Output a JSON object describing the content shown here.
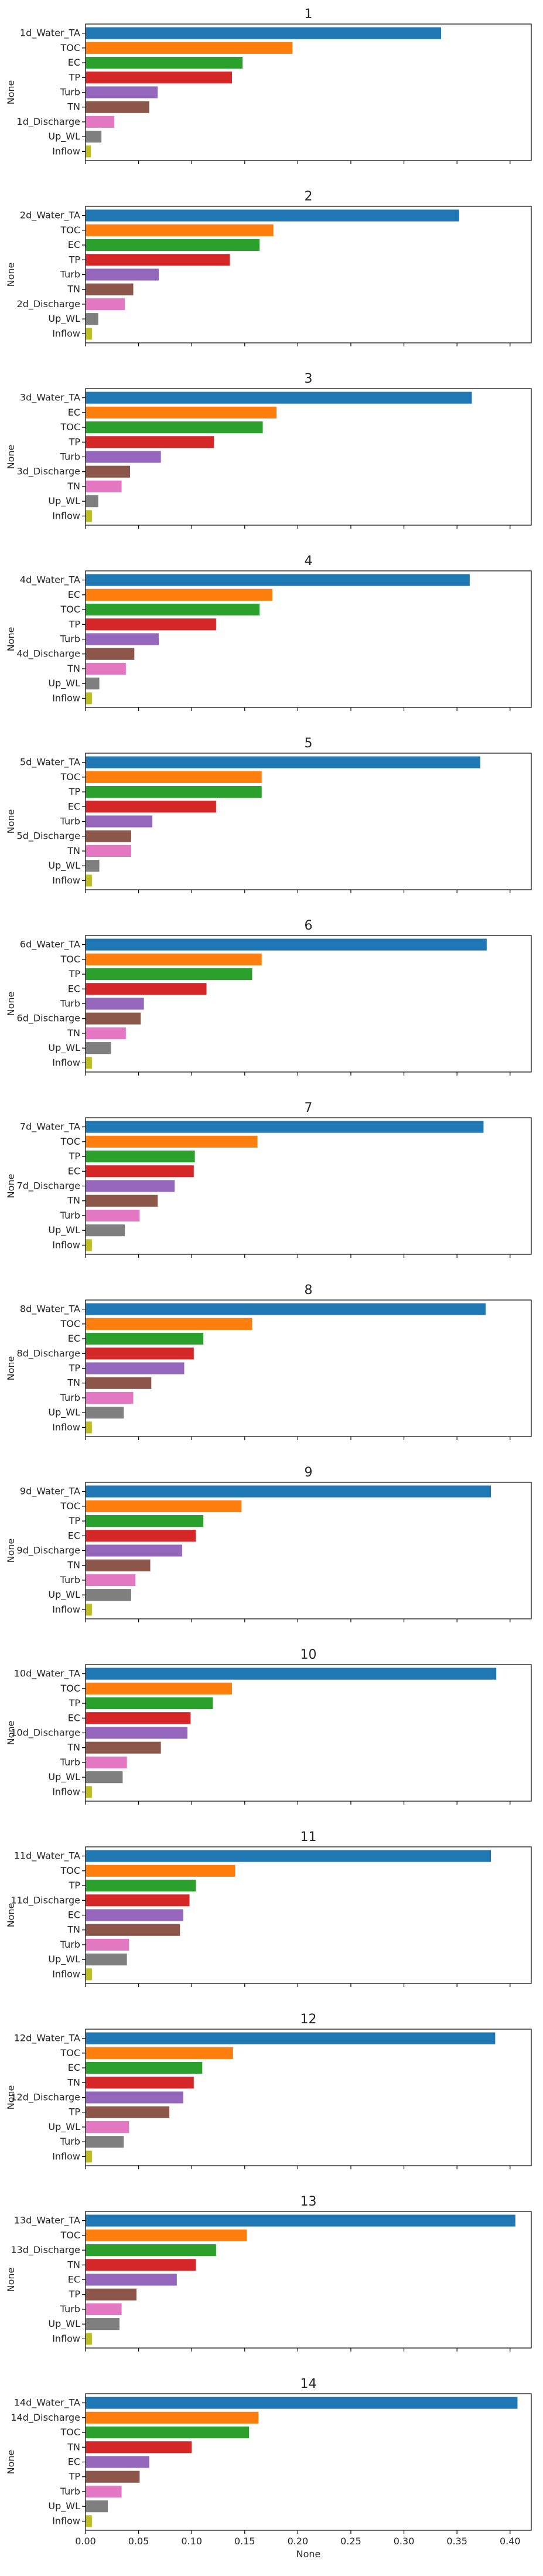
{
  "figure": {
    "background": "#ffffff",
    "colors": [
      "#1f77b4",
      "#ff7f0e",
      "#2ca02c",
      "#d62728",
      "#9467bd",
      "#8c564b",
      "#e377c2",
      "#7f7f7f",
      "#bcbd22"
    ]
  },
  "chart_data": [
    {
      "type": "bar",
      "orientation": "horizontal",
      "title": "1",
      "xlabel": "",
      "ylabel": "None",
      "xlim": [
        0,
        0.42
      ],
      "categories": [
        "1d_Water_TA",
        "TOC",
        "EC",
        "TP",
        "Turb",
        "TN",
        "1d_Discharge",
        "Up_WL",
        "Inflow"
      ],
      "values": [
        0.335,
        0.195,
        0.148,
        0.138,
        0.068,
        0.06,
        0.027,
        0.015,
        0.005
      ]
    },
    {
      "type": "bar",
      "orientation": "horizontal",
      "title": "2",
      "xlabel": "",
      "ylabel": "None",
      "xlim": [
        0,
        0.42
      ],
      "categories": [
        "2d_Water_TA",
        "TOC",
        "EC",
        "TP",
        "Turb",
        "TN",
        "2d_Discharge",
        "Up_WL",
        "Inflow"
      ],
      "values": [
        0.352,
        0.177,
        0.164,
        0.136,
        0.069,
        0.045,
        0.037,
        0.012,
        0.006
      ]
    },
    {
      "type": "bar",
      "orientation": "horizontal",
      "title": "3",
      "xlabel": "",
      "ylabel": "None",
      "xlim": [
        0,
        0.42
      ],
      "categories": [
        "3d_Water_TA",
        "EC",
        "TOC",
        "TP",
        "Turb",
        "3d_Discharge",
        "TN",
        "Up_WL",
        "Inflow"
      ],
      "values": [
        0.364,
        0.18,
        0.167,
        0.121,
        0.071,
        0.042,
        0.034,
        0.012,
        0.006
      ]
    },
    {
      "type": "bar",
      "orientation": "horizontal",
      "title": "4",
      "xlabel": "",
      "ylabel": "None",
      "xlim": [
        0,
        0.42
      ],
      "categories": [
        "4d_Water_TA",
        "EC",
        "TOC",
        "TP",
        "Turb",
        "4d_Discharge",
        "TN",
        "Up_WL",
        "Inflow"
      ],
      "values": [
        0.362,
        0.176,
        0.164,
        0.123,
        0.069,
        0.046,
        0.038,
        0.013,
        0.006
      ]
    },
    {
      "type": "bar",
      "orientation": "horizontal",
      "title": "5",
      "xlabel": "",
      "ylabel": "None",
      "xlim": [
        0,
        0.42
      ],
      "categories": [
        "5d_Water_TA",
        "TOC",
        "TP",
        "EC",
        "Turb",
        "5d_Discharge",
        "TN",
        "Up_WL",
        "Inflow"
      ],
      "values": [
        0.372,
        0.166,
        0.166,
        0.123,
        0.063,
        0.043,
        0.043,
        0.013,
        0.006
      ]
    },
    {
      "type": "bar",
      "orientation": "horizontal",
      "title": "6",
      "xlabel": "",
      "ylabel": "None",
      "xlim": [
        0,
        0.42
      ],
      "categories": [
        "6d_Water_TA",
        "TOC",
        "TP",
        "EC",
        "Turb",
        "6d_Discharge",
        "TN",
        "Up_WL",
        "Inflow"
      ],
      "values": [
        0.378,
        0.166,
        0.157,
        0.114,
        0.055,
        0.052,
        0.038,
        0.024,
        0.006
      ]
    },
    {
      "type": "bar",
      "orientation": "horizontal",
      "title": "7",
      "xlabel": "",
      "ylabel": "None",
      "xlim": [
        0,
        0.42
      ],
      "categories": [
        "7d_Water_TA",
        "TOC",
        "TP",
        "EC",
        "7d_Discharge",
        "TN",
        "Turb",
        "Up_WL",
        "Inflow"
      ],
      "values": [
        0.375,
        0.162,
        0.103,
        0.102,
        0.084,
        0.068,
        0.051,
        0.037,
        0.006
      ]
    },
    {
      "type": "bar",
      "orientation": "horizontal",
      "title": "8",
      "xlabel": "",
      "ylabel": "None",
      "xlim": [
        0,
        0.42
      ],
      "categories": [
        "8d_Water_TA",
        "TOC",
        "EC",
        "8d_Discharge",
        "TP",
        "TN",
        "Turb",
        "Up_WL",
        "Inflow"
      ],
      "values": [
        0.377,
        0.157,
        0.111,
        0.102,
        0.093,
        0.062,
        0.045,
        0.036,
        0.006
      ]
    },
    {
      "type": "bar",
      "orientation": "horizontal",
      "title": "9",
      "xlabel": "",
      "ylabel": "None",
      "xlim": [
        0,
        0.42
      ],
      "categories": [
        "9d_Water_TA",
        "TOC",
        "TP",
        "EC",
        "9d_Discharge",
        "TN",
        "Turb",
        "Up_WL",
        "Inflow"
      ],
      "values": [
        0.382,
        0.147,
        0.111,
        0.104,
        0.091,
        0.061,
        0.047,
        0.043,
        0.006
      ]
    },
    {
      "type": "bar",
      "orientation": "horizontal",
      "title": "10",
      "xlabel": "",
      "ylabel": "None",
      "xlim": [
        0,
        0.42
      ],
      "categories": [
        "10d_Water_TA",
        "TOC",
        "TP",
        "EC",
        "10d_Discharge",
        "TN",
        "Turb",
        "Up_WL",
        "Inflow"
      ],
      "values": [
        0.387,
        0.138,
        0.12,
        0.099,
        0.096,
        0.071,
        0.039,
        0.035,
        0.006
      ]
    },
    {
      "type": "bar",
      "orientation": "horizontal",
      "title": "11",
      "xlabel": "",
      "ylabel": "None",
      "xlim": [
        0,
        0.42
      ],
      "categories": [
        "11d_Water_TA",
        "TOC",
        "TP",
        "11d_Discharge",
        "EC",
        "TN",
        "Turb",
        "Up_WL",
        "Inflow"
      ],
      "values": [
        0.382,
        0.141,
        0.104,
        0.098,
        0.092,
        0.089,
        0.041,
        0.039,
        0.006
      ]
    },
    {
      "type": "bar",
      "orientation": "horizontal",
      "title": "12",
      "xlabel": "",
      "ylabel": "None",
      "xlim": [
        0,
        0.42
      ],
      "categories": [
        "12d_Water_TA",
        "TOC",
        "EC",
        "TN",
        "12d_Discharge",
        "TP",
        "Up_WL",
        "Turb",
        "Inflow"
      ],
      "values": [
        0.386,
        0.139,
        0.11,
        0.102,
        0.092,
        0.079,
        0.041,
        0.036,
        0.006
      ]
    },
    {
      "type": "bar",
      "orientation": "horizontal",
      "title": "13",
      "xlabel": "",
      "ylabel": "None",
      "xlim": [
        0,
        0.42
      ],
      "categories": [
        "13d_Water_TA",
        "TOC",
        "13d_Discharge",
        "TN",
        "EC",
        "TP",
        "Turb",
        "Up_WL",
        "Inflow"
      ],
      "values": [
        0.405,
        0.152,
        0.123,
        0.104,
        0.086,
        0.048,
        0.034,
        0.032,
        0.006
      ]
    },
    {
      "type": "bar",
      "orientation": "horizontal",
      "title": "14",
      "xlabel": "None",
      "ylabel": "None",
      "xlim": [
        0,
        0.42
      ],
      "categories": [
        "14d_Water_TA",
        "14d_Discharge",
        "TOC",
        "TN",
        "EC",
        "TP",
        "Turb",
        "Up_WL",
        "Inflow"
      ],
      "values": [
        0.407,
        0.163,
        0.154,
        0.1,
        0.06,
        0.051,
        0.034,
        0.021,
        0.006
      ]
    }
  ],
  "x_ticks": [
    "0.00",
    "0.05",
    "0.10",
    "0.15",
    "0.20",
    "0.25",
    "0.30",
    "0.35",
    "0.40"
  ],
  "x_tick_values": [
    0,
    0.05,
    0.1,
    0.15,
    0.2,
    0.25,
    0.3,
    0.35,
    0.4
  ]
}
